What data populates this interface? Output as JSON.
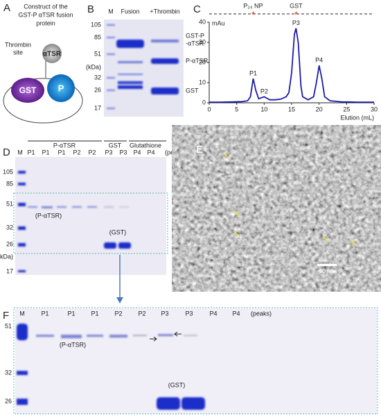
{
  "panels": {
    "A": {
      "label": "A",
      "title_lines": [
        "Construct of the",
        "GST-P αTSR fusion",
        "protein"
      ],
      "site_lines": [
        "Thrombin",
        "site"
      ],
      "tsr": "αTSR",
      "gst": "GST",
      "p": "P"
    },
    "B": {
      "label": "B",
      "lanes": [
        "M",
        "Fusion",
        "+Thrombin"
      ],
      "mw": [
        "105",
        "85",
        "51",
        "(kDa)",
        "32",
        "26",
        "17"
      ],
      "bands": [
        "GST-P",
        "-αTSR",
        "P-αTSR",
        "GST"
      ]
    },
    "C": {
      "label": "C"
    },
    "D": {
      "label": "D",
      "groups": [
        "P-αTSR",
        "GST",
        "Glutathione"
      ],
      "lanes": [
        "M",
        "P1",
        "P1",
        "P1",
        "P2",
        "P2",
        "P3",
        "P3",
        "P4",
        "P4",
        "(peaks)"
      ],
      "mw": [
        "105",
        "85",
        "51",
        "32",
        "26",
        "(kDa)",
        "17"
      ],
      "band_labels": [
        "(P-αTSR)",
        "(GST)"
      ]
    },
    "E": {
      "label": "E",
      "scale": "50 nm"
    },
    "F": {
      "label": "F",
      "lanes": [
        "M",
        "P1",
        "P1",
        "P1",
        "P2",
        "P2",
        "P3",
        "P3",
        "P4",
        "P4",
        "(peaks)"
      ],
      "mw": [
        "51",
        "32",
        "26"
      ],
      "band_labels": [
        "(P-αTSR)",
        "(GST)"
      ]
    }
  },
  "chart_data": {
    "type": "line",
    "x": [
      0,
      2,
      4,
      6,
      7,
      7.5,
      8,
      8.5,
      9,
      10,
      11,
      12,
      13,
      14,
      14.5,
      15,
      15.5,
      15.8,
      16.2,
      16.7,
      17,
      18,
      19,
      19.5,
      20,
      20.5,
      21,
      22,
      24,
      27,
      30
    ],
    "series": [
      {
        "color": "#1a1aa8",
        "values": [
          0.3,
          0.3,
          0.4,
          0.6,
          1,
          3,
          12,
          6,
          2,
          3,
          1.5,
          1.5,
          1.8,
          3,
          5,
          15,
          34,
          37,
          30,
          8,
          3,
          1.5,
          3,
          10,
          18.5,
          12,
          3,
          1,
          0.5,
          0.3,
          0.3
        ]
      }
    ],
    "xlim": [
      0,
      30
    ],
    "xticks": [
      0,
      5,
      10,
      15,
      20,
      25,
      30
    ],
    "ylim": [
      0,
      40
    ],
    "yticks": [
      0,
      10,
      20,
      30,
      40
    ],
    "xlabel": "Elution (mL)",
    "ylabel": "mAu",
    "annotations": [
      {
        "text": "P1",
        "x": 8,
        "y": 12
      },
      {
        "text": "P2",
        "x": 10,
        "y": 3
      },
      {
        "text": "P3",
        "x": 15.8,
        "y": 37
      },
      {
        "text": "P4",
        "x": 20,
        "y": 18.5
      }
    ],
    "fractions": [
      {
        "text": "P₂₄ NP",
        "x": 8
      },
      {
        "text": "GST",
        "x": 15.8
      }
    ]
  }
}
